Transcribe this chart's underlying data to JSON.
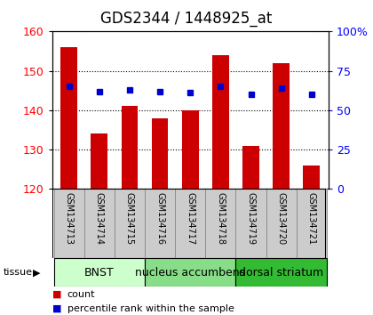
{
  "title": "GDS2344 / 1448925_at",
  "samples": [
    "GSM134713",
    "GSM134714",
    "GSM134715",
    "GSM134716",
    "GSM134717",
    "GSM134718",
    "GSM134719",
    "GSM134720",
    "GSM134721"
  ],
  "counts": [
    156,
    134,
    141,
    138,
    140,
    154,
    131,
    152,
    126
  ],
  "percentiles": [
    65,
    62,
    63,
    62,
    61,
    65,
    60,
    64,
    60
  ],
  "ylim_left": [
    120,
    160
  ],
  "ylim_right": [
    0,
    100
  ],
  "yticks_left": [
    120,
    130,
    140,
    150,
    160
  ],
  "yticks_right": [
    0,
    25,
    50,
    75,
    100
  ],
  "bar_color": "#cc0000",
  "dot_color": "#0000cc",
  "bar_bottom": 120,
  "bar_width": 0.55,
  "tissue_groups": [
    {
      "label": "BNST",
      "start": 0,
      "end": 3,
      "color": "#ccffcc"
    },
    {
      "label": "nucleus accumbens",
      "start": 3,
      "end": 6,
      "color": "#88dd88"
    },
    {
      "label": "dorsal striatum",
      "start": 6,
      "end": 9,
      "color": "#33bb33"
    }
  ],
  "xlabel_tissue": "tissue",
  "legend_count": "count",
  "legend_pct": "percentile rank within the sample",
  "title_fontsize": 12,
  "tick_fontsize": 9,
  "sample_fontsize": 7,
  "tissue_fontsize": 9,
  "legend_fontsize": 8,
  "grid_linestyle": "dotted",
  "plot_bg": "#ffffff",
  "sample_box_color": "#cccccc",
  "sample_box_edge": "#888888"
}
